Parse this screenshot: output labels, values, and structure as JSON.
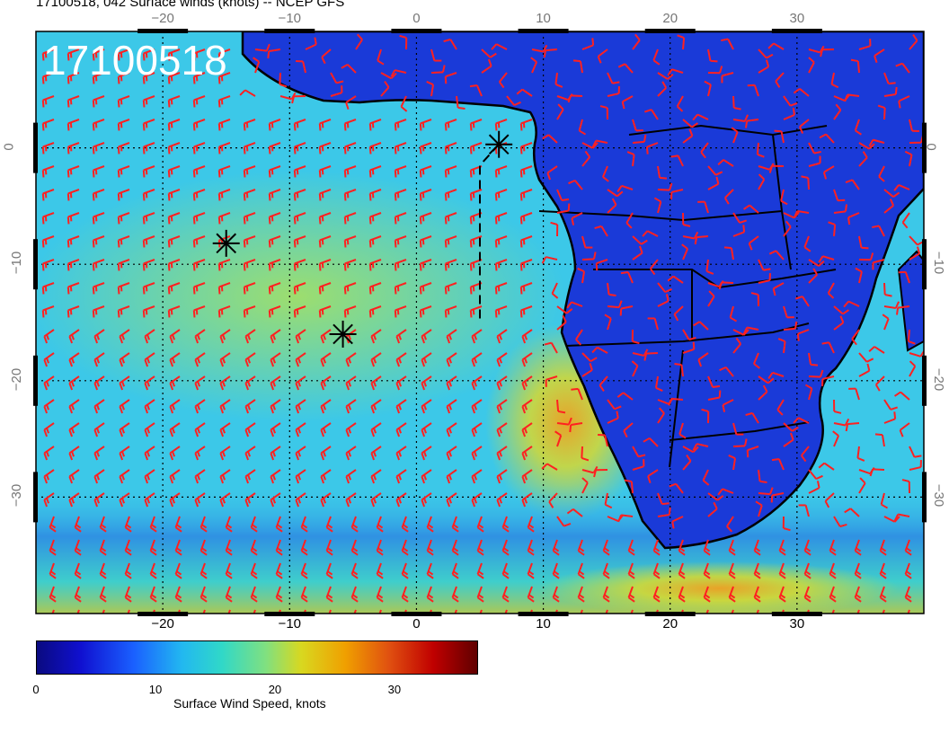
{
  "title": "17100518, 042 Surface winds (knots) -- NCEP GFS",
  "stamp": "17100518",
  "map": {
    "projection": "cylindrical",
    "lon_range": [
      -30,
      40
    ],
    "lat_range": [
      -40,
      10
    ],
    "lon_ticks": [
      -20,
      -10,
      0,
      10,
      20,
      30
    ],
    "lat_ticks": [
      0,
      -10,
      -20,
      -30
    ],
    "lon_tick_labels": [
      "−20",
      "−10",
      "0",
      "10",
      "20",
      "30"
    ],
    "lat_tick_labels": [
      "0",
      "−10",
      "−20",
      "−30"
    ],
    "ocean_color": "#3cc8e8",
    "land_color": "#1a3ad8",
    "coast_color": "#000000",
    "barb_color": "#ff2020",
    "grid": "dotted"
  },
  "markers": [
    {
      "name": "star-east",
      "lon": 6.5,
      "lat": 0.3
    },
    {
      "name": "star-west",
      "lon": -15,
      "lat": -8.2
    },
    {
      "name": "star-center",
      "lon": -5.8,
      "lat": -16
    }
  ],
  "track": {
    "points": [
      [
        6.5,
        0.3
      ],
      [
        5,
        -1.5
      ],
      [
        5,
        -15
      ]
    ],
    "style": "dashed"
  },
  "colorbar": {
    "label": "Surface Wind Speed, knots",
    "range": [
      0,
      37
    ],
    "ticks": [
      0,
      10,
      20,
      30
    ],
    "tick_labels": [
      "0",
      "10",
      "20",
      "30"
    ],
    "colormap": "jet"
  }
}
